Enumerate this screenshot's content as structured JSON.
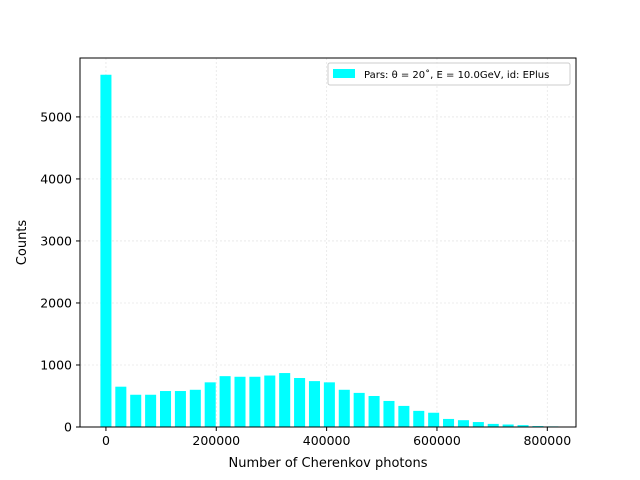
{
  "chart_data": {
    "type": "bar",
    "xlabel": "Number of Cherenkov photons",
    "ylabel": "Counts",
    "xlim": [
      -47000,
      852000
    ],
    "ylim": [
      0,
      5950
    ],
    "grid": true,
    "legend_position": "top-right",
    "x_ticks": [
      0,
      200000,
      400000,
      600000,
      800000
    ],
    "y_ticks": [
      0,
      1000,
      2000,
      3000,
      4000,
      5000
    ],
    "x_tick_labels": [
      "0",
      "200000",
      "400000",
      "600000",
      "800000"
    ],
    "y_tick_labels": [
      "0",
      "1000",
      "2000",
      "3000",
      "4000",
      "5000"
    ],
    "bar_width": 20000,
    "series": [
      {
        "name": "Pars: θ = 20˚, E = 10.0GeV, id: EPlus",
        "color": "#00ffff",
        "x": [
          0,
          27000,
          54000,
          81000,
          108000,
          135000,
          162000,
          189000,
          216000,
          243000,
          270000,
          297000,
          324000,
          351000,
          378000,
          405000,
          432000,
          459000,
          486000,
          513000,
          540000,
          567000,
          594000,
          621000,
          648000,
          675000,
          702000,
          729000,
          756000,
          783000,
          810000
        ],
        "values": [
          5680,
          650,
          520,
          520,
          580,
          580,
          600,
          720,
          820,
          810,
          810,
          830,
          870,
          790,
          740,
          720,
          600,
          550,
          500,
          420,
          340,
          260,
          230,
          130,
          110,
          80,
          50,
          40,
          30,
          15,
          10
        ]
      }
    ]
  }
}
